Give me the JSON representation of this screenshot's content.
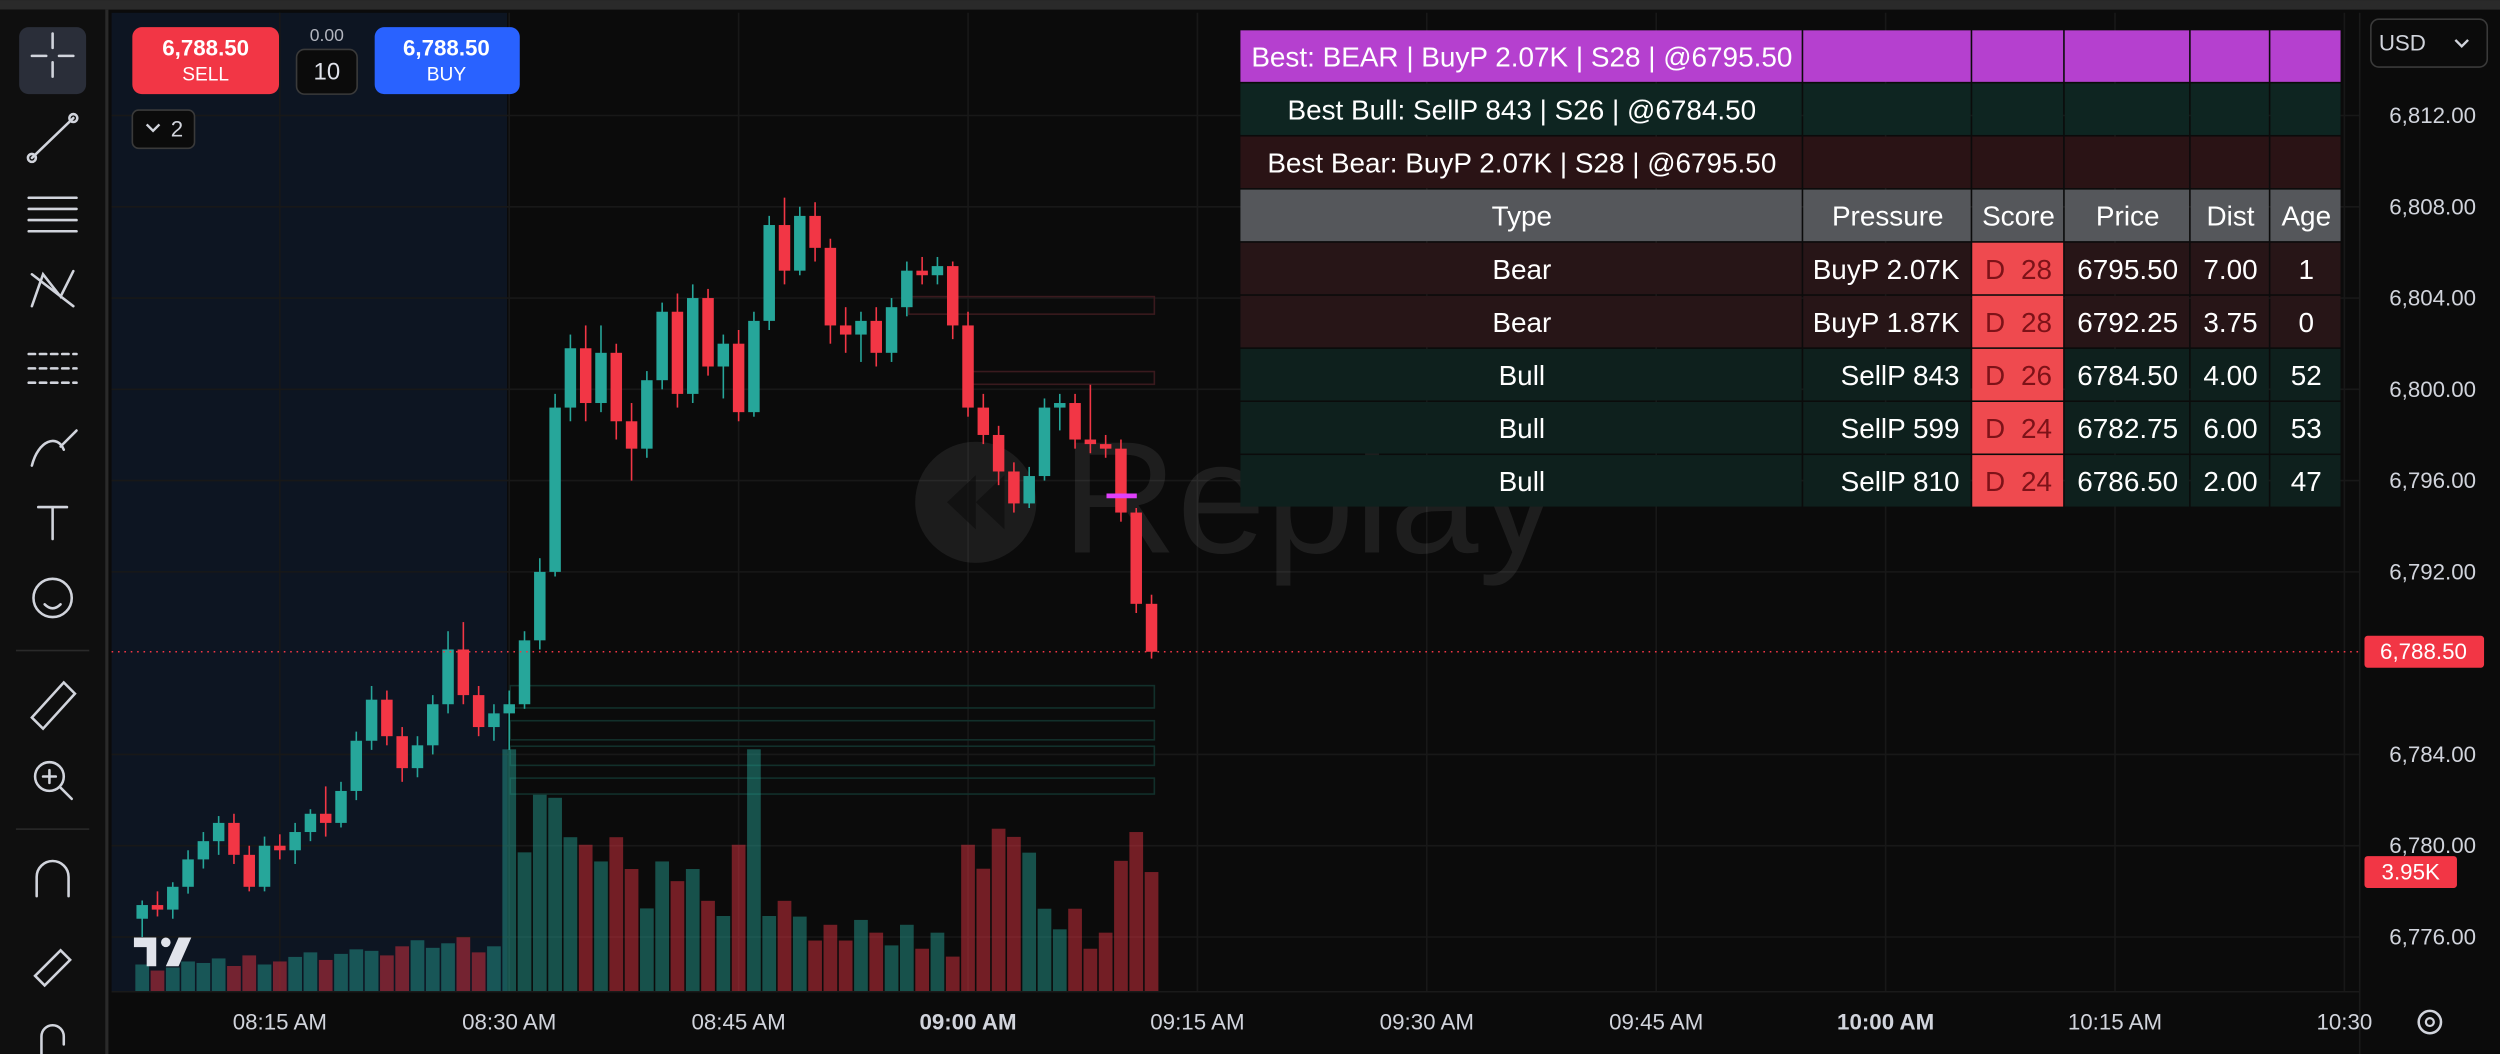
{
  "order_panel": {
    "sell_price": "6,788.50",
    "sell_label": "SELL",
    "spread": "0.00",
    "quantity": "10",
    "buy_price": "6,788.50",
    "buy_label": "BUY"
  },
  "indicators_toggle": "2",
  "currency": "USD",
  "watermark": "Replay",
  "table": {
    "banner": "Best: BEAR | BuyP 2.07K | S28 | @6795.50",
    "banner_color": "#b540cf",
    "summary": [
      {
        "text": "Best Bull: SellP 843 | S26 | @6784.50",
        "color": "#0e2521"
      },
      {
        "text": "Best Bear: BuyP 2.07K | S28 | @6795.50",
        "color": "#2a1315"
      }
    ],
    "header": [
      "Type",
      "Pressure",
      "Score",
      "Price",
      "Dist",
      "Age"
    ],
    "header_color": "#55575b",
    "score_color": "#ef4a4f",
    "rows": [
      {
        "cells": [
          "Bear",
          "BuyP 2.07K",
          "D",
          28,
          "6795.50",
          "7.00",
          1
        ],
        "color": "#271517"
      },
      {
        "cells": [
          "Bear",
          "BuyP 1.87K",
          "D",
          28,
          "6792.25",
          "3.75",
          0
        ],
        "color": "#271517"
      },
      {
        "cells": [
          "Bull",
          "SellP 843",
          "D",
          26,
          "6784.50",
          "4.00",
          52
        ],
        "color": "#0e201d"
      },
      {
        "cells": [
          "Bull",
          "SellP 599",
          "D",
          24,
          "6782.75",
          "6.00",
          53
        ],
        "color": "#0e201d"
      },
      {
        "cells": [
          "Bull",
          "SellP 810",
          "D",
          24,
          "6786.50",
          "2.00",
          47
        ],
        "color": "#0e201d"
      }
    ]
  },
  "chart_data": {
    "type": "candlestick",
    "x": [
      "08:06 AM",
      "08:07 AM",
      "08:08 AM",
      "08:09 AM",
      "08:10 AM",
      "08:11 AM",
      "08:12 AM",
      "08:13 AM",
      "08:14 AM",
      "08:15 AM",
      "08:16 AM",
      "08:17 AM",
      "08:18 AM",
      "08:19 AM",
      "08:20 AM",
      "08:21 AM",
      "08:22 AM",
      "08:23 AM",
      "08:24 AM",
      "08:25 AM",
      "08:26 AM",
      "08:27 AM",
      "08:28 AM",
      "08:29 AM",
      "08:30 AM",
      "08:31 AM",
      "08:32 AM",
      "08:33 AM",
      "08:34 AM",
      "08:35 AM",
      "08:36 AM",
      "08:37 AM",
      "08:38 AM",
      "08:39 AM",
      "08:40 AM",
      "08:41 AM",
      "08:42 AM",
      "08:43 AM",
      "08:44 AM",
      "08:45 AM",
      "08:46 AM",
      "08:47 AM",
      "08:48 AM",
      "08:49 AM",
      "08:50 AM",
      "08:51 AM",
      "08:52 AM",
      "08:53 AM",
      "08:54 AM",
      "08:55 AM",
      "08:56 AM",
      "08:57 AM",
      "08:58 AM",
      "08:59 AM",
      "09:00 AM",
      "09:01 AM",
      "09:02 AM",
      "09:03 AM",
      "09:04 AM",
      "09:05 AM",
      "09:06 AM",
      "09:07 AM",
      "09:08 AM",
      "09:09 AM",
      "09:10 AM",
      "09:11 AM",
      "09:12 AM"
    ],
    "open": [
      6776.8,
      6777.4,
      6777.2,
      6778.2,
      6779.4,
      6780.2,
      6781.0,
      6779.6,
      6778.2,
      6780.0,
      6779.8,
      6780.6,
      6781.4,
      6781.0,
      6782.4,
      6784.6,
      6786.4,
      6784.8,
      6783.4,
      6784.4,
      6786.2,
      6788.6,
      6786.6,
      6785.2,
      6785.8,
      6786.2,
      6789.0,
      6792.0,
      6799.2,
      6801.8,
      6799.4,
      6801.6,
      6798.6,
      6797.4,
      6800.4,
      6803.4,
      6799.8,
      6804.0,
      6801.0,
      6802.0,
      6799.0,
      6803.0,
      6807.2,
      6805.2,
      6807.6,
      6806.2,
      6802.8,
      6802.4,
      6803.0,
      6801.6,
      6803.6,
      6805.2,
      6805.0,
      6805.4,
      6802.8,
      6799.2,
      6798.0,
      6796.4,
      6795.0,
      6796.2,
      6799.2,
      6799.4,
      6797.8,
      6797.6,
      6797.4,
      6794.6,
      6790.6
    ],
    "high": [
      6777.6,
      6778.0,
      6778.4,
      6779.8,
      6780.6,
      6781.3,
      6781.4,
      6780.0,
      6780.4,
      6780.5,
      6781.0,
      6781.6,
      6782.6,
      6782.8,
      6785.0,
      6787.0,
      6786.8,
      6785.2,
      6784.8,
      6786.6,
      6789.4,
      6789.8,
      6787.0,
      6786.2,
      6786.8,
      6789.4,
      6792.6,
      6799.8,
      6802.4,
      6802.8,
      6802.8,
      6802.0,
      6799.4,
      6800.8,
      6803.8,
      6804.2,
      6804.6,
      6804.4,
      6802.4,
      6802.6,
      6803.4,
      6807.6,
      6808.4,
      6808.0,
      6808.2,
      6806.6,
      6803.6,
      6803.4,
      6803.6,
      6804.0,
      6805.6,
      6805.8,
      6805.8,
      6805.6,
      6803.4,
      6799.8,
      6798.4,
      6796.8,
      6796.6,
      6799.6,
      6799.8,
      6799.8,
      6800.2,
      6798.0,
      6797.8,
      6794.8,
      6791.0
    ],
    "low": [
      6776.0,
      6776.9,
      6776.8,
      6777.9,
      6779.0,
      6779.6,
      6779.2,
      6778.0,
      6778.0,
      6779.4,
      6779.2,
      6780.2,
      6780.4,
      6780.8,
      6782.0,
      6784.2,
      6784.4,
      6782.8,
      6783.0,
      6784.0,
      6785.8,
      6786.2,
      6784.8,
      6784.6,
      6784.2,
      6786.0,
      6788.6,
      6791.8,
      6798.6,
      6798.6,
      6799.0,
      6797.8,
      6796.0,
      6797.0,
      6800.0,
      6799.2,
      6799.4,
      6800.6,
      6799.6,
      6798.6,
      6798.8,
      6802.6,
      6804.6,
      6805.0,
      6805.6,
      6802.0,
      6801.6,
      6801.2,
      6801.0,
      6801.2,
      6803.2,
      6804.6,
      6804.6,
      6802.2,
      6798.8,
      6797.6,
      6795.8,
      6794.6,
      6794.8,
      6796.0,
      6798.2,
      6797.4,
      6797.2,
      6797.0,
      6794.2,
      6790.2,
      6788.2
    ],
    "close": [
      6777.4,
      6777.2,
      6778.2,
      6779.4,
      6780.2,
      6781.0,
      6779.6,
      6778.2,
      6780.0,
      6779.8,
      6780.6,
      6781.4,
      6781.0,
      6782.4,
      6784.6,
      6786.4,
      6784.8,
      6783.4,
      6784.4,
      6786.2,
      6788.6,
      6786.6,
      6785.2,
      6785.8,
      6786.2,
      6789.0,
      6792.0,
      6799.2,
      6801.8,
      6799.4,
      6801.6,
      6798.6,
      6797.4,
      6800.4,
      6803.4,
      6799.8,
      6804.0,
      6801.0,
      6802.0,
      6799.0,
      6803.0,
      6807.2,
      6805.2,
      6807.6,
      6806.2,
      6802.8,
      6802.4,
      6803.0,
      6801.6,
      6803.6,
      6805.2,
      6805.0,
      6805.4,
      6802.8,
      6799.2,
      6798.0,
      6796.4,
      6795.0,
      6796.2,
      6799.2,
      6799.4,
      6797.8,
      6797.6,
      6797.4,
      6794.6,
      6790.6,
      6788.5
    ],
    "volume": [
      900,
      700,
      800,
      1000,
      950,
      1100,
      850,
      1200,
      900,
      1000,
      1150,
      1300,
      1050,
      1250,
      1400,
      1350,
      1200,
      1500,
      1700,
      1450,
      1600,
      1800,
      1300,
      1500,
      8000,
      4600,
      6500,
      6400,
      5100,
      4850,
      4300,
      5100,
      4050,
      2750,
      4300,
      3650,
      4050,
      3000,
      2500,
      4850,
      8000,
      2500,
      3000,
      2480,
      1690,
      2210,
      1690,
      2370,
      1950,
      1530,
      2210,
      1420,
      1950,
      1160,
      4850,
      4060,
      5380,
      5110,
      4590,
      2740,
      2060,
      2740,
      1420,
      1950,
      4320,
      5270,
      3950
    ],
    "volume_last_label": "3.95K",
    "volume_ylim": [
      0,
      32300
    ],
    "up_color": "#26a69a",
    "down_color": "#f23645",
    "xlim": [
      "08:04 AM",
      "10:31"
    ],
    "xticks": [
      "08:15 AM",
      "08:30 AM",
      "08:45 AM",
      "09:00 AM",
      "09:15 AM",
      "09:30 AM",
      "09:45 AM",
      "10:00 AM",
      "10:15 AM",
      "10:30"
    ],
    "ylim": [
      6773.6,
      6816.5
    ],
    "yticks": [
      {
        "value": 6812,
        "label": "6,812.00"
      },
      {
        "value": 6808,
        "label": "6,808.00"
      },
      {
        "value": 6804,
        "label": "6,804.00"
      },
      {
        "value": 6800,
        "label": "6,800.00"
      },
      {
        "value": 6796,
        "label": "6,796.00"
      },
      {
        "value": 6792,
        "label": "6,792.00"
      },
      {
        "value": 6784,
        "label": "6,784.00"
      },
      {
        "value": 6780,
        "label": "6,780.00"
      },
      {
        "value": 6776,
        "label": "6,776.00"
      }
    ],
    "last_price": 6788.5,
    "last_price_label": "6,788.50",
    "grid": true
  }
}
